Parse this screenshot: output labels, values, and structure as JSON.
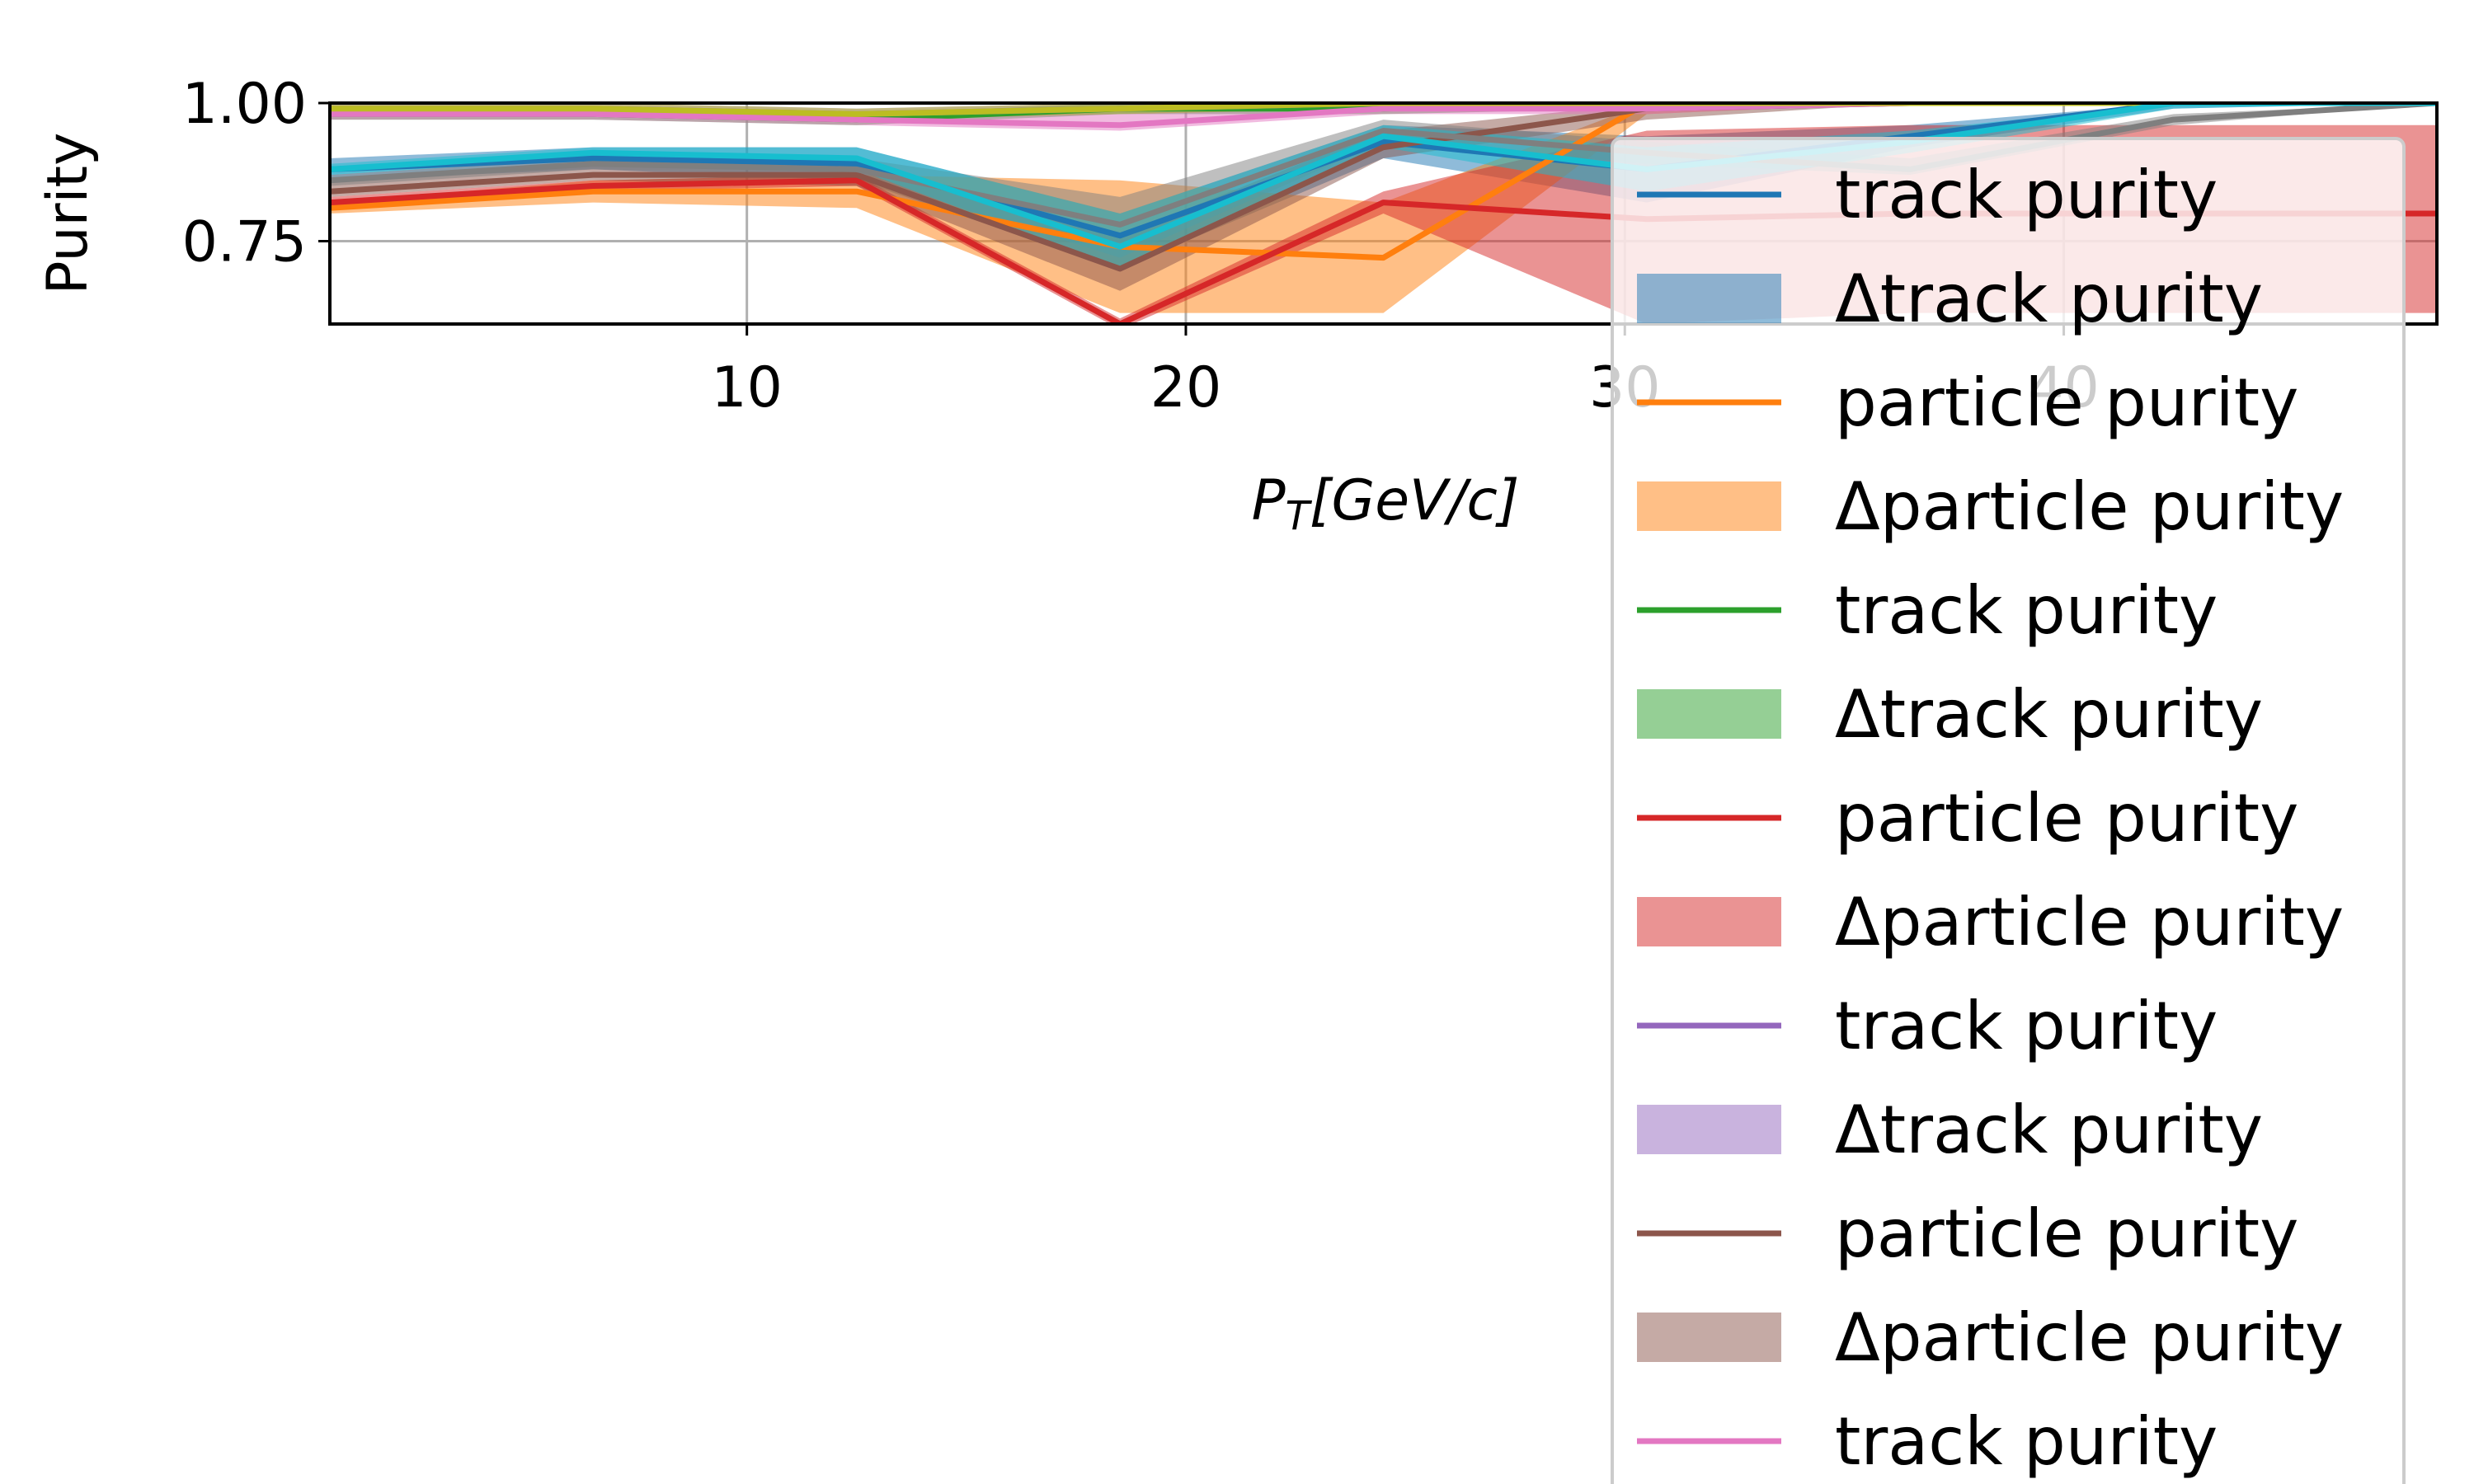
{
  "chart_data": {
    "type": "line",
    "xlabel": "P_T[GeV/c]",
    "ylabel": "Purity",
    "xlim": [
      0.5,
      48.5
    ],
    "ylim": [
      0.6,
      1.0
    ],
    "xticks": [
      10,
      20,
      30,
      40
    ],
    "yticks": [
      0.75,
      1.0
    ],
    "xtick_labels": [
      "10",
      "20",
      "30",
      "40"
    ],
    "ytick_labels": [
      "0.75",
      "1.00"
    ],
    "grid": true,
    "legend_position": "right, overlapping the plot",
    "x": [
      0.5,
      6.5,
      12.5,
      18.5,
      24.5,
      30.5,
      36.5,
      42.5,
      48.5
    ],
    "series": [
      {
        "name": "track purity",
        "color": "#1f77b4",
        "band": "Δtrack purity",
        "band_color": "#1f77b4",
        "values": [
          0.88,
          0.9,
          0.89,
          0.76,
          0.93,
          0.88,
          0.94,
          1.0,
          1.0
        ],
        "lower": [
          0.86,
          0.88,
          0.86,
          0.7,
          0.9,
          0.82,
          0.92,
          0.99,
          1.0
        ],
        "upper": [
          0.9,
          0.92,
          0.92,
          0.8,
          0.96,
          0.94,
          0.96,
          1.0,
          1.0
        ]
      },
      {
        "name": "particle purity",
        "color": "#ff7f0e",
        "band": "Δparticle purity",
        "band_color": "#ff7f0e",
        "values": [
          0.81,
          0.84,
          0.84,
          0.74,
          0.72,
          1.0,
          1.0,
          1.0,
          1.0
        ],
        "lower": [
          0.8,
          0.82,
          0.81,
          0.62,
          0.62,
          0.98,
          1.0,
          1.0,
          1.0
        ],
        "upper": [
          0.82,
          0.86,
          0.87,
          0.86,
          0.82,
          1.0,
          1.0,
          1.0,
          1.0
        ]
      },
      {
        "name": "track purity",
        "color": "#2ca02c",
        "band": "Δtrack purity",
        "band_color": "#2ca02c",
        "values": [
          0.98,
          0.98,
          0.97,
          0.99,
          0.99,
          1.0,
          1.0,
          1.0,
          1.0
        ],
        "lower": [
          0.97,
          0.97,
          0.96,
          0.98,
          0.98,
          0.99,
          1.0,
          1.0,
          1.0
        ],
        "upper": [
          0.99,
          0.99,
          0.98,
          1.0,
          1.0,
          1.0,
          1.0,
          1.0,
          1.0
        ]
      },
      {
        "name": "particle purity",
        "color": "#d62728",
        "band": "Δparticle purity",
        "band_color": "#d62728",
        "values": [
          0.82,
          0.85,
          0.86,
          0.6,
          0.82,
          0.79,
          0.8,
          0.8,
          0.8
        ],
        "lower": [
          0.81,
          0.84,
          0.85,
          0.59,
          0.8,
          0.6,
          0.62,
          0.62,
          0.62
        ],
        "upper": [
          0.83,
          0.86,
          0.87,
          0.61,
          0.84,
          0.95,
          0.96,
          0.96,
          0.96
        ]
      },
      {
        "name": "track purity",
        "color": "#9467bd",
        "band": "Δtrack purity",
        "band_color": "#9467bd",
        "values": [
          0.99,
          0.99,
          0.98,
          0.99,
          1.0,
          1.0,
          1.0,
          1.0,
          1.0
        ],
        "lower": [
          0.98,
          0.98,
          0.97,
          0.98,
          0.99,
          1.0,
          1.0,
          1.0,
          1.0
        ],
        "upper": [
          1.0,
          1.0,
          0.99,
          1.0,
          1.0,
          1.0,
          1.0,
          1.0,
          1.0
        ]
      },
      {
        "name": "particle purity",
        "color": "#8c564b",
        "band": "Δparticle purity",
        "band_color": "#8c564b",
        "values": [
          0.84,
          0.87,
          0.87,
          0.7,
          0.92,
          0.99,
          1.0,
          1.0,
          1.0
        ],
        "lower": [
          0.83,
          0.86,
          0.85,
          0.66,
          0.9,
          0.97,
          1.0,
          1.0,
          1.0
        ],
        "upper": [
          0.86,
          0.89,
          0.89,
          0.76,
          0.95,
          1.0,
          1.0,
          1.0,
          1.0
        ]
      },
      {
        "name": "track purity",
        "color": "#e377c2",
        "band": "Δtrack purity",
        "band_color": "#e377c2",
        "values": [
          0.98,
          0.98,
          0.97,
          0.96,
          0.99,
          0.99,
          1.0,
          1.0,
          1.0
        ],
        "lower": [
          0.97,
          0.97,
          0.96,
          0.95,
          0.98,
          0.98,
          1.0,
          1.0,
          1.0
        ],
        "upper": [
          0.99,
          0.99,
          0.98,
          0.98,
          1.0,
          1.0,
          1.0,
          1.0,
          1.0
        ]
      },
      {
        "name": "particle purity",
        "color": "#7f7f7f",
        "band": "Δparticle purity",
        "band_color": "#7f7f7f",
        "values": [
          0.86,
          0.89,
          0.88,
          0.78,
          0.95,
          0.91,
          0.88,
          0.97,
          1.0
        ],
        "lower": [
          0.85,
          0.88,
          0.87,
          0.72,
          0.93,
          0.89,
          0.87,
          0.96,
          1.0
        ],
        "upper": [
          0.87,
          0.9,
          0.9,
          0.83,
          0.97,
          0.93,
          0.9,
          0.98,
          1.0
        ]
      },
      {
        "name": "track purity",
        "color": "#bcbd22",
        "band": "Δtrack purity",
        "band_color": "#bcbd22",
        "values": [
          0.99,
          0.99,
          0.98,
          0.99,
          1.0,
          1.0,
          1.0,
          1.0,
          1.0
        ],
        "lower": [
          0.98,
          0.98,
          0.97,
          0.98,
          0.99,
          1.0,
          1.0,
          1.0,
          1.0
        ],
        "upper": [
          1.0,
          1.0,
          0.99,
          1.0,
          1.0,
          1.0,
          1.0,
          1.0,
          1.0
        ]
      },
      {
        "name": "particle purity",
        "color": "#17becf",
        "band": "Δparticle purity",
        "band_color": "#17becf",
        "values": [
          0.88,
          0.91,
          0.9,
          0.74,
          0.94,
          0.88,
          0.93,
          1.0,
          1.0
        ],
        "lower": [
          0.87,
          0.9,
          0.88,
          0.7,
          0.92,
          0.84,
          0.91,
          0.99,
          1.0
        ],
        "upper": [
          0.89,
          0.92,
          0.92,
          0.8,
          0.96,
          0.92,
          0.95,
          1.0,
          1.0
        ]
      }
    ],
    "legend_entries": [
      {
        "label": "track purity",
        "kind": "line",
        "color": "#1f77b4"
      },
      {
        "label": "Δtrack purity",
        "kind": "patch",
        "color": "#1f77b4"
      },
      {
        "label": "particle purity",
        "kind": "line",
        "color": "#ff7f0e"
      },
      {
        "label": "Δparticle purity",
        "kind": "patch",
        "color": "#ff7f0e"
      },
      {
        "label": "track purity",
        "kind": "line",
        "color": "#2ca02c"
      },
      {
        "label": "Δtrack purity",
        "kind": "patch",
        "color": "#2ca02c"
      },
      {
        "label": "particle purity",
        "kind": "line",
        "color": "#d62728"
      },
      {
        "label": "Δparticle purity",
        "kind": "patch",
        "color": "#d62728"
      },
      {
        "label": "track purity",
        "kind": "line",
        "color": "#9467bd"
      },
      {
        "label": "Δtrack purity",
        "kind": "patch",
        "color": "#9467bd"
      },
      {
        "label": "particle purity",
        "kind": "line",
        "color": "#8c564b"
      },
      {
        "label": "Δparticle purity",
        "kind": "patch",
        "color": "#8c564b"
      },
      {
        "label": "track purity",
        "kind": "line",
        "color": "#e377c2"
      }
    ]
  }
}
